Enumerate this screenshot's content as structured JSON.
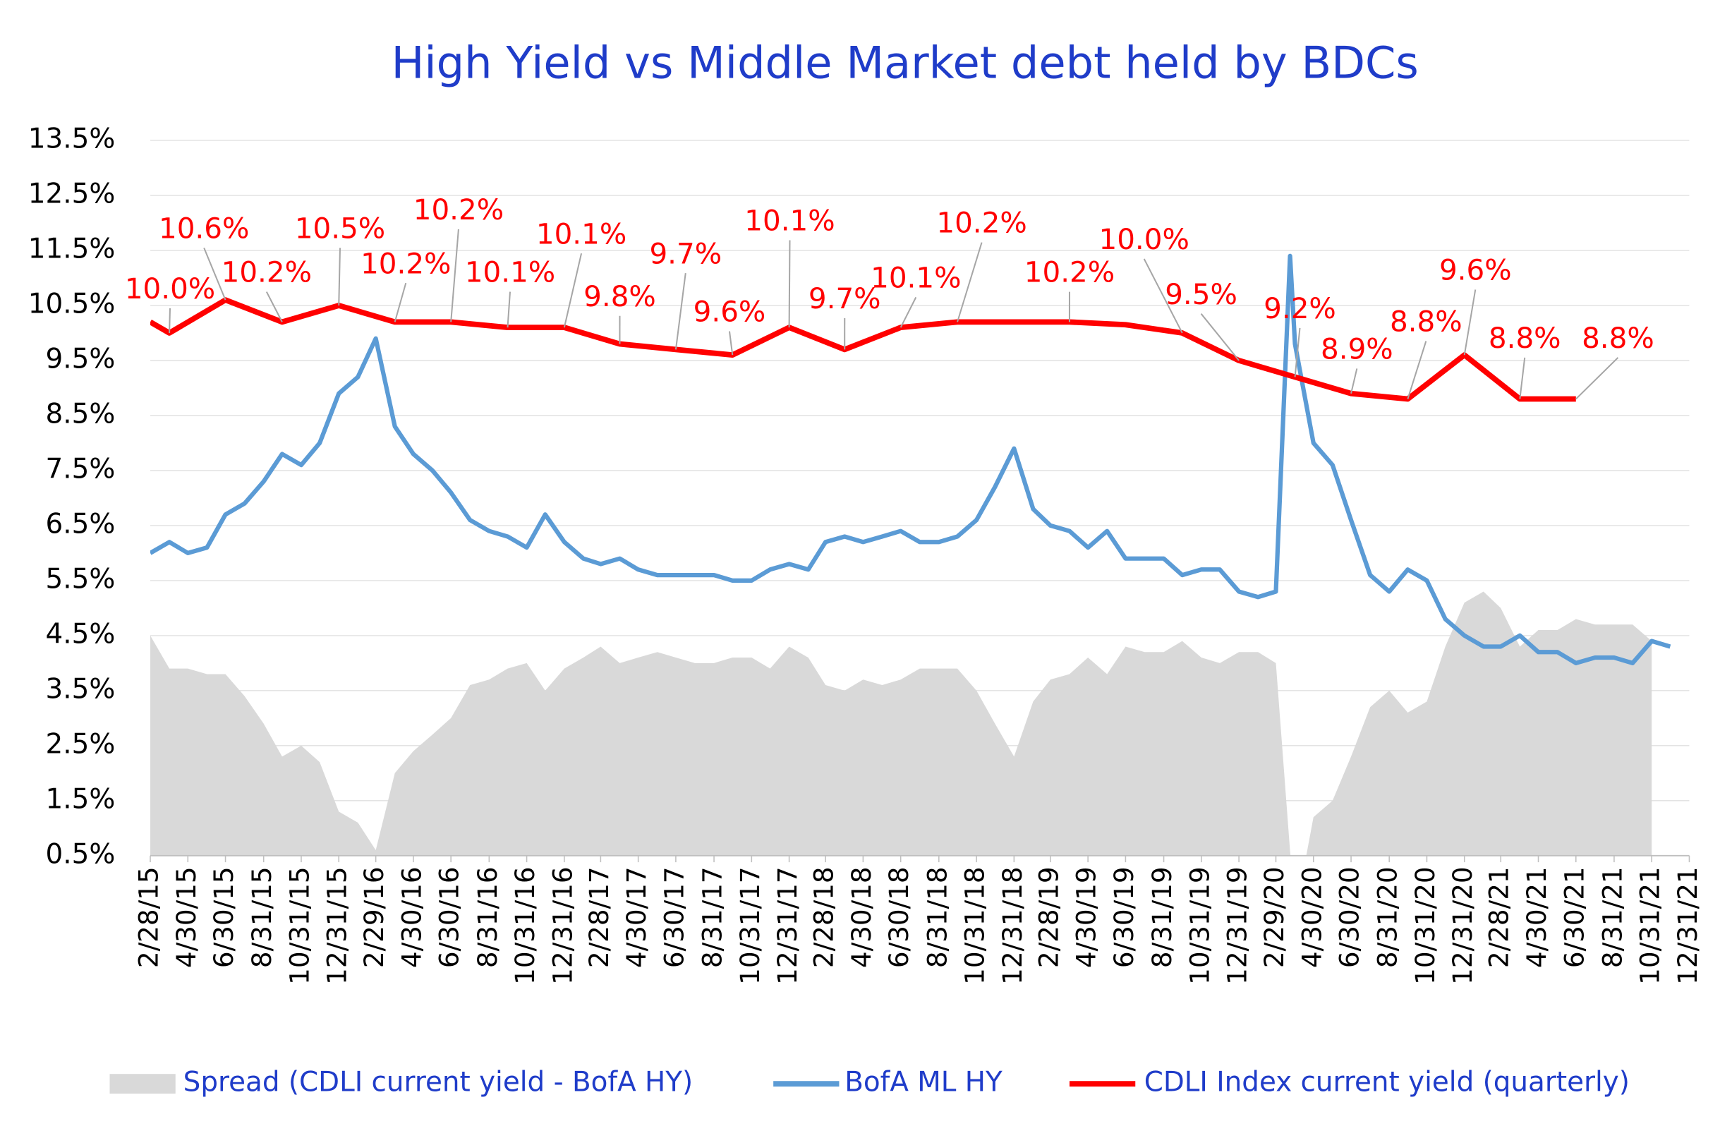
{
  "chart_data": {
    "type": "line",
    "title": "High Yield  vs  Middle Market debt held by BDCs",
    "xlim": [
      "2/28/15",
      "12/31/21"
    ],
    "xticks": [
      "2/28/15",
      "4/30/15",
      "6/30/15",
      "8/31/15",
      "10/31/15",
      "12/31/15",
      "2/29/16",
      "4/30/16",
      "6/30/16",
      "8/31/16",
      "10/31/16",
      "12/31/16",
      "2/28/17",
      "4/30/17",
      "6/30/17",
      "8/31/17",
      "10/31/17",
      "12/31/17",
      "2/28/18",
      "4/30/18",
      "6/30/18",
      "8/31/18",
      "10/31/18",
      "12/31/18",
      "2/28/19",
      "4/30/19",
      "6/30/19",
      "8/31/19",
      "10/31/19",
      "12/31/19",
      "2/29/20",
      "4/30/20",
      "6/30/20",
      "8/31/20",
      "10/31/20",
      "12/31/20",
      "2/28/21",
      "4/30/21",
      "6/30/21",
      "8/31/21",
      "10/31/21",
      "12/31/21"
    ],
    "ylim": [
      0.5,
      13.5
    ],
    "yticks": [
      {
        "value": 0.5,
        "label": "0.5%"
      },
      {
        "value": 1.5,
        "label": "1.5%"
      },
      {
        "value": 2.5,
        "label": "2.5%"
      },
      {
        "value": 3.5,
        "label": "3.5%"
      },
      {
        "value": 4.5,
        "label": "4.5%"
      },
      {
        "value": 5.5,
        "label": "5.5%"
      },
      {
        "value": 6.5,
        "label": "6.5%"
      },
      {
        "value": 7.5,
        "label": "7.5%"
      },
      {
        "value": 8.5,
        "label": "8.5%"
      },
      {
        "value": 9.5,
        "label": "9.5%"
      },
      {
        "value": 10.5,
        "label": "10.5%"
      },
      {
        "value": 11.5,
        "label": "11.5%"
      },
      {
        "value": 12.5,
        "label": "12.5%"
      },
      {
        "value": 13.5,
        "label": "13.5%"
      }
    ],
    "grid": true,
    "legend": "bottom",
    "series": [
      {
        "name": "Spread (CDLI current yield - BofA HY)",
        "color": "#d9d9d9",
        "style": "area",
        "x": [
          "2/28/15",
          "3/31/15",
          "4/30/15",
          "5/31/15",
          "6/30/15",
          "7/31/15",
          "8/31/15",
          "9/30/15",
          "10/31/15",
          "11/30/15",
          "12/31/15",
          "1/31/16",
          "2/29/16",
          "3/31/16",
          "4/30/16",
          "5/31/16",
          "6/30/16",
          "7/31/16",
          "8/31/16",
          "9/30/16",
          "10/31/16",
          "11/30/16",
          "12/31/16",
          "1/31/17",
          "2/28/17",
          "3/31/17",
          "4/30/17",
          "5/31/17",
          "6/30/17",
          "7/31/17",
          "8/31/17",
          "9/30/17",
          "10/31/17",
          "11/30/17",
          "12/31/17",
          "1/31/18",
          "2/28/18",
          "3/31/18",
          "4/30/18",
          "5/31/18",
          "6/30/18",
          "7/31/18",
          "8/31/18",
          "9/30/18",
          "10/31/18",
          "11/30/18",
          "12/31/18",
          "1/31/19",
          "2/28/19",
          "3/31/19",
          "4/30/19",
          "5/31/19",
          "6/30/19",
          "7/31/19",
          "8/31/19",
          "9/30/19",
          "10/31/19",
          "11/30/19",
          "12/31/19",
          "1/31/20",
          "2/29/20",
          "3/31/20",
          "4/30/20",
          "5/31/20",
          "6/30/20",
          "7/31/20",
          "8/31/20",
          "9/30/20",
          "10/31/20",
          "11/30/20",
          "12/31/20",
          "1/31/21",
          "2/28/21",
          "3/31/21",
          "4/30/21",
          "5/31/21",
          "6/30/21",
          "7/31/21",
          "8/31/21",
          "9/30/21",
          "10/31/21"
        ],
        "values": [
          4.5,
          3.9,
          3.9,
          3.8,
          3.8,
          3.4,
          2.9,
          2.3,
          2.5,
          2.2,
          1.3,
          1.1,
          0.6,
          2.0,
          2.4,
          2.7,
          3.0,
          3.6,
          3.7,
          3.9,
          4.0,
          3.5,
          3.9,
          4.1,
          4.3,
          4.0,
          4.1,
          4.2,
          4.1,
          4.0,
          4.0,
          4.1,
          4.1,
          3.9,
          4.3,
          4.1,
          3.6,
          3.5,
          3.7,
          3.6,
          3.7,
          3.9,
          3.9,
          3.9,
          3.5,
          2.9,
          2.3,
          3.3,
          3.7,
          3.8,
          4.1,
          3.8,
          4.3,
          4.2,
          4.2,
          4.4,
          4.1,
          4.0,
          4.2,
          4.2,
          4.0,
          -0.6,
          1.2,
          1.5,
          2.3,
          3.2,
          3.5,
          3.1,
          3.3,
          4.3,
          5.1,
          5.3,
          5.0,
          4.3,
          4.6,
          4.6,
          4.8,
          4.7,
          4.7,
          4.7,
          4.4
        ]
      },
      {
        "name": "BofA ML HY",
        "color": "#5b9bd5",
        "style": "line",
        "x": [
          "2/28/15",
          "3/31/15",
          "4/30/15",
          "5/31/15",
          "6/30/15",
          "7/31/15",
          "8/31/15",
          "9/30/15",
          "10/31/15",
          "11/30/15",
          "12/31/15",
          "1/31/16",
          "2/29/16",
          "3/31/16",
          "4/30/16",
          "5/31/16",
          "6/30/16",
          "7/31/16",
          "8/31/16",
          "9/30/16",
          "10/31/16",
          "11/30/16",
          "12/31/16",
          "1/31/17",
          "2/28/17",
          "3/31/17",
          "4/30/17",
          "5/31/17",
          "6/30/17",
          "7/31/17",
          "8/31/17",
          "9/30/17",
          "10/31/17",
          "11/30/17",
          "12/31/17",
          "1/31/18",
          "2/28/18",
          "3/31/18",
          "4/30/18",
          "5/31/18",
          "6/30/18",
          "7/31/18",
          "8/31/18",
          "9/30/18",
          "10/31/18",
          "11/30/18",
          "12/31/18",
          "1/31/19",
          "2/28/19",
          "3/31/19",
          "4/30/19",
          "5/31/19",
          "6/30/19",
          "7/31/19",
          "8/31/19",
          "9/30/19",
          "10/31/19",
          "11/30/19",
          "12/31/19",
          "1/31/20",
          "2/29/20",
          "3/23/20",
          "3/31/20",
          "4/30/20",
          "5/31/20",
          "6/30/20",
          "7/31/20",
          "8/31/20",
          "9/30/20",
          "10/31/20",
          "11/30/20",
          "12/31/20",
          "1/31/21",
          "2/28/21",
          "3/31/21",
          "4/30/21",
          "5/31/21",
          "6/30/21",
          "7/31/21",
          "8/31/21",
          "9/30/21",
          "10/31/21",
          "11/30/21"
        ],
        "values": [
          6.0,
          6.2,
          6.0,
          6.1,
          6.7,
          6.9,
          7.3,
          7.8,
          7.6,
          8.0,
          8.9,
          9.2,
          9.9,
          8.3,
          7.8,
          7.5,
          7.1,
          6.6,
          6.4,
          6.3,
          6.1,
          6.7,
          6.2,
          5.9,
          5.8,
          5.9,
          5.7,
          5.6,
          5.6,
          5.6,
          5.6,
          5.5,
          5.5,
          5.7,
          5.8,
          5.7,
          6.2,
          6.3,
          6.2,
          6.3,
          6.4,
          6.2,
          6.2,
          6.3,
          6.6,
          7.2,
          7.9,
          6.8,
          6.5,
          6.4,
          6.1,
          6.4,
          5.9,
          5.9,
          5.9,
          5.6,
          5.7,
          5.7,
          5.3,
          5.2,
          5.3,
          11.4,
          9.8,
          8.0,
          7.6,
          6.6,
          5.6,
          5.3,
          5.7,
          5.5,
          4.8,
          4.5,
          4.3,
          4.3,
          4.5,
          4.2,
          4.2,
          4.0,
          4.1,
          4.1,
          4.0,
          4.4,
          4.3
        ]
      },
      {
        "name": "CDLI Index current yield (quarterly)",
        "color": "#ff0000",
        "style": "line",
        "label_color": "#ff0000",
        "x": [
          "2/28/15",
          "3/31/15",
          "6/30/15",
          "9/30/15",
          "12/31/15",
          "3/31/16",
          "6/30/16",
          "9/30/16",
          "12/31/16",
          "3/31/17",
          "6/30/17",
          "9/30/17",
          "12/31/17",
          "3/31/18",
          "6/30/18",
          "9/30/18",
          "12/31/18",
          "3/31/19",
          "6/30/19",
          "9/30/19",
          "12/31/19",
          "3/31/20",
          "6/30/20",
          "9/30/20",
          "12/31/20",
          "3/31/21",
          "6/30/21"
        ],
        "values": [
          10.2,
          10.0,
          10.6,
          10.2,
          10.5,
          10.2,
          10.2,
          10.1,
          10.1,
          9.8,
          9.7,
          9.6,
          10.1,
          9.7,
          10.1,
          10.2,
          10.2,
          10.2,
          10.15,
          10.0,
          9.5,
          9.2,
          8.9,
          8.8,
          9.6,
          8.8,
          8.8
        ],
        "value_labels": [
          null,
          "10.0%",
          "10.6%",
          "10.2%",
          "10.5%",
          "10.2%",
          "10.2%",
          "10.1%",
          "10.1%",
          "9.8%",
          "9.7%",
          "9.6%",
          "10.1%",
          "9.7%",
          "10.1%",
          "10.2%",
          null,
          "10.2%",
          null,
          "10.0%",
          "9.5%",
          "9.2%",
          "8.9%",
          "8.8%",
          "9.6%",
          "8.8%",
          "8.8%"
        ]
      }
    ]
  }
}
